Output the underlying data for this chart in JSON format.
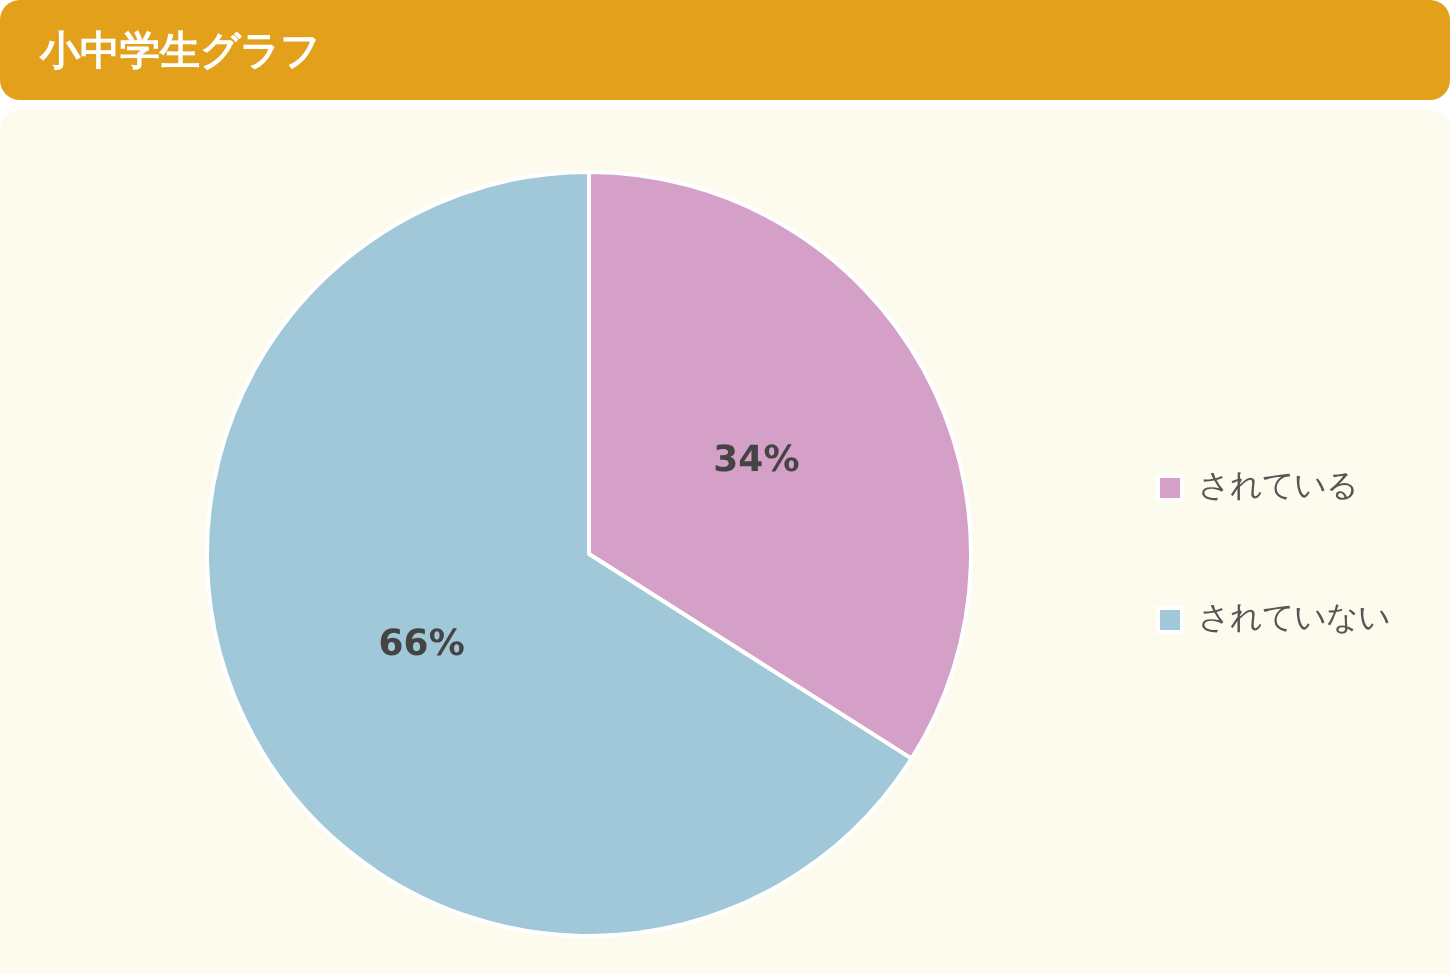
{
  "chart_data": {
    "type": "pie",
    "title": "小中学生グラフ",
    "categories": [
      "されている",
      "されていない"
    ],
    "values": [
      34,
      66
    ],
    "colors": [
      "#d4a0c8",
      "#a0c8d8"
    ],
    "value_labels": [
      "34%",
      "66%"
    ],
    "legend": "right"
  }
}
